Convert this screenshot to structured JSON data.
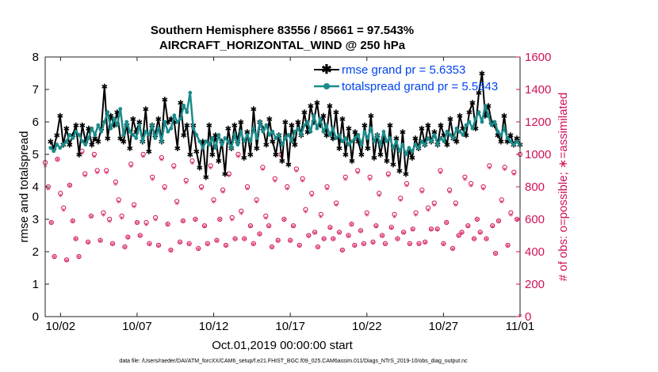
{
  "chart_data": {
    "type": "line",
    "title": "Southern Hemisphere 83556 / 85661 = 97.543%",
    "subtitle": "AIRCRAFT_HORIZONTAL_WIND @ 250 hPa",
    "xlabel": "Oct.01,2019 00:00:00 start",
    "ylabel_left": "rmse and totalspread",
    "ylabel_right": "# of obs: o=possible; ∗=assimilated",
    "x_ticks": [
      "10/02",
      "10/07",
      "10/12",
      "10/17",
      "10/22",
      "10/27",
      "11/01"
    ],
    "x_tick_days": [
      2,
      7,
      12,
      17,
      22,
      27,
      32
    ],
    "xlim": [
      1,
      32
    ],
    "y_left_lim": [
      0,
      8
    ],
    "y_left_ticks": [
      "0",
      "1",
      "2",
      "3",
      "4",
      "5",
      "6",
      "7",
      "8"
    ],
    "y_right_lim": [
      0,
      1600
    ],
    "y_right_ticks": [
      "0",
      "200",
      "400",
      "600",
      "800",
      "1000",
      "1200",
      "1400",
      "1600"
    ],
    "footer": "data file: /Users/raeder/DAI/ATM_forcXX/CAM6_setup/f.e21.FHIST_BGC.f09_025.CAM6assim.011/Diags_NTrS_2019-10/obs_diag_output.nc",
    "colors": {
      "rmse": "#000000",
      "spread": "#1b8b8b",
      "obs": "#d0105a",
      "legend_text": "#0044ee"
    },
    "series": [
      {
        "name": "rmse grand pr = 5.6353",
        "marker": "star",
        "values": [
          5.4,
          5.2,
          5.6,
          6.2,
          5.3,
          5.8,
          5.3,
          5.6,
          5.9,
          5.0,
          5.9,
          5.4,
          5.8,
          5.3,
          5.5,
          5.4,
          5.8,
          7.1,
          5.5,
          6.2,
          5.9,
          6.3,
          5.5,
          5.4,
          5.9,
          5.2,
          6.1,
          5.7,
          6.0,
          5.4,
          6.4,
          5.1,
          5.9,
          5.6,
          6.1,
          5.4,
          6.7,
          6.0,
          6.1,
          6.0,
          5.2,
          6.6,
          5.6,
          5.9,
          5.0,
          5.9,
          5.1,
          4.6,
          5.4,
          4.3,
          5.9,
          5.0,
          5.6,
          4.8,
          5.4,
          4.4,
          5.8,
          5.2,
          5.9,
          5.4,
          6.0,
          4.9,
          5.7,
          5.0,
          6.4,
          5.2,
          6.0,
          5.8,
          5.3,
          6.1,
          5.4,
          5.0,
          5.6,
          4.8,
          6.0,
          4.7,
          5.9,
          5.3,
          6.0,
          5.6,
          6.3,
          5.7,
          6.5,
          6.0,
          6.6,
          5.9,
          6.2,
          5.6,
          6.5,
          5.5,
          6.3,
          5.2,
          6.1,
          5.0,
          5.8,
          4.8,
          5.7,
          5.4,
          5.0,
          5.9,
          5.2,
          6.2,
          4.9,
          5.6,
          5.0,
          5.5,
          4.8,
          5.9,
          4.7,
          5.5,
          4.5,
          5.7,
          4.4,
          5.1,
          4.9,
          5.5,
          5.2,
          5.8,
          5.3,
          5.9,
          5.4,
          5.7,
          5.3,
          5.9,
          5.6,
          5.3,
          6.1,
          5.5,
          5.4,
          6.2,
          5.8,
          5.6,
          6.3,
          6.6,
          5.8,
          6.9,
          7.5,
          6.2,
          6.5,
          6.0,
          5.9,
          5.6,
          5.4,
          6.2,
          5.4,
          5.6,
          5.3,
          5.5,
          5.3
        ]
      },
      {
        "name": "totalspread grand pr = 5.5643",
        "marker": "circle",
        "values": [
          5.2,
          5.1,
          5.3,
          5.2,
          5.3,
          5.4,
          5.6,
          5.5,
          5.7,
          5.6,
          5.4,
          5.3,
          5.5,
          5.8,
          5.6,
          5.9,
          5.7,
          6.0,
          6.3,
          5.8,
          6.1,
          5.9,
          6.4,
          5.6,
          6.0,
          5.7,
          5.6,
          5.5,
          5.9,
          5.4,
          5.7,
          5.6,
          5.9,
          5.5,
          5.8,
          5.4,
          6.0,
          5.7,
          5.8,
          6.2,
          6.0,
          6.1,
          6.5,
          6.3,
          6.9,
          5.8,
          5.6,
          5.4,
          5.2,
          5.4,
          5.3,
          5.5,
          5.2,
          5.6,
          5.3,
          5.5,
          5.4,
          5.2,
          5.6,
          5.3,
          5.7,
          5.4,
          5.6,
          5.4,
          5.8,
          5.5,
          6.0,
          5.7,
          5.9,
          5.6,
          5.7,
          5.5,
          5.6,
          5.3,
          5.5,
          5.6,
          5.4,
          5.7,
          5.8,
          5.6,
          5.9,
          6.0,
          5.7,
          6.2,
          5.8,
          6.1,
          5.7,
          5.9,
          5.6,
          5.8,
          5.5,
          5.6,
          5.4,
          5.5,
          5.3,
          5.4,
          5.5,
          5.6,
          5.3,
          5.7,
          5.5,
          5.8,
          5.4,
          5.6,
          5.3,
          5.7,
          5.4,
          5.5,
          5.2,
          5.4,
          5.1,
          5.3,
          5.0,
          5.2,
          5.1,
          5.3,
          5.2,
          5.4,
          5.3,
          5.5,
          5.4,
          5.6,
          5.3,
          5.5,
          5.4,
          5.7,
          5.6,
          5.5,
          5.8,
          5.7,
          5.6,
          5.9,
          6.0,
          5.8,
          6.1,
          6.3,
          6.0,
          6.5,
          6.2,
          5.9,
          6.0,
          5.7,
          5.6,
          5.8,
          5.5,
          5.4,
          5.3,
          5.4,
          5.3
        ]
      }
    ],
    "obs_possible": [
      950,
      800,
      580,
      370,
      970,
      760,
      670,
      350,
      810,
      590,
      480,
      370,
      1020,
      880,
      460,
      620,
      1000,
      900,
      470,
      640,
      900,
      600,
      450,
      830,
      720,
      620,
      430,
      490,
      940,
      690,
      580,
      500,
      1000,
      580,
      450,
      860,
      610,
      440,
      980,
      800,
      570,
      410,
      930,
      710,
      460,
      590,
      840,
      450,
      960,
      600,
      420,
      800,
      560,
      450,
      930,
      720,
      470,
      600,
      780,
      440,
      880,
      610,
      480,
      1000,
      650,
      480,
      800,
      560,
      450,
      720,
      510,
      920,
      620,
      560,
      430,
      850,
      470,
      1000,
      600,
      800,
      470,
      560,
      910,
      440,
      850,
      660,
      500,
      760,
      520,
      430,
      630,
      480,
      800,
      550,
      480,
      700,
      520,
      410,
      860,
      500,
      570,
      440,
      900,
      530,
      450,
      640,
      860,
      460,
      560,
      760,
      500,
      450,
      880,
      550,
      630,
      480,
      730,
      520,
      820,
      450,
      540,
      640,
      450,
      780,
      460,
      670,
      540,
      700,
      540,
      900,
      450,
      580,
      780,
      420,
      700,
      500,
      520,
      860,
      560,
      820,
      480,
      600,
      520,
      800,
      480,
      930,
      560,
      390,
      590,
      720,
      920,
      440,
      640,
      890,
      600,
      1000
    ],
    "obs_assimilated": [
      920,
      780,
      570,
      360,
      960,
      740,
      650,
      340,
      800,
      580,
      470,
      360,
      1000,
      860,
      450,
      610,
      980,
      880,
      460,
      620,
      880,
      580,
      440,
      810,
      700,
      600,
      420,
      480,
      920,
      670,
      570,
      490,
      980,
      560,
      440,
      840,
      590,
      430,
      960,
      780,
      560,
      400,
      910,
      690,
      450,
      580,
      820,
      440,
      940,
      590,
      410,
      780,
      550,
      440,
      910,
      700,
      460,
      590,
      760,
      430,
      860,
      590,
      470,
      980,
      630,
      470,
      780,
      550,
      440,
      700,
      500,
      900,
      600,
      550,
      420,
      830,
      460,
      980,
      590,
      780,
      460,
      550,
      890,
      430,
      830,
      640,
      490,
      740,
      510,
      420,
      610,
      470,
      780,
      540,
      470,
      680,
      510,
      400,
      840,
      490,
      560,
      430,
      880,
      520,
      440,
      620,
      840,
      450,
      550,
      740,
      490,
      440,
      860,
      540,
      610,
      470,
      710,
      510,
      800,
      440,
      530,
      620,
      440,
      760,
      450,
      650,
      530,
      680,
      530,
      880,
      440,
      570,
      760,
      410,
      680,
      490,
      510,
      840,
      550,
      800,
      470,
      590,
      510,
      780,
      470,
      910,
      550,
      380,
      580,
      700,
      900,
      430,
      620,
      870,
      590,
      0
    ]
  }
}
